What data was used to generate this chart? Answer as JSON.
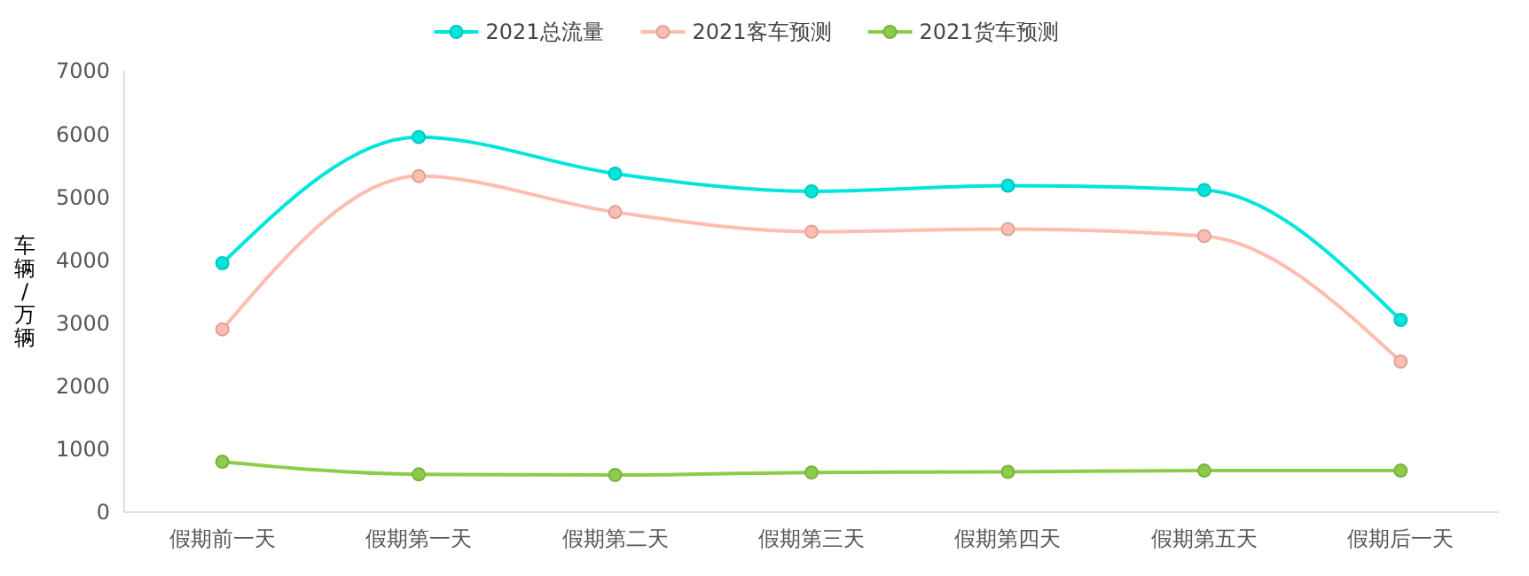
{
  "chart_data": {
    "type": "line",
    "ylabel": "车辆/万辆",
    "categories": [
      "假期前一天",
      "假期第一天",
      "假期第二天",
      "假期第三天",
      "假期第四天",
      "假期第五天",
      "假期后一天"
    ],
    "series": [
      {
        "name": "2021总流量",
        "color": "#00e5dc",
        "values": [
          3950,
          5950,
          5370,
          5090,
          5180,
          5110,
          3050
        ]
      },
      {
        "name": "2021客车预测",
        "color": "#ffbcb0",
        "values": [
          2900,
          5330,
          4760,
          4450,
          4490,
          4380,
          2390
        ]
      },
      {
        "name": "2021货车预测",
        "color": "#8dcc4a",
        "values": [
          800,
          600,
          590,
          630,
          640,
          660,
          660
        ]
      }
    ],
    "ylim": [
      0,
      7000
    ],
    "yticks": [
      0,
      1000,
      2000,
      3000,
      4000,
      5000,
      6000,
      7000
    ],
    "grid": false,
    "legend": "top",
    "marker": "circle",
    "line_style": "solid"
  }
}
